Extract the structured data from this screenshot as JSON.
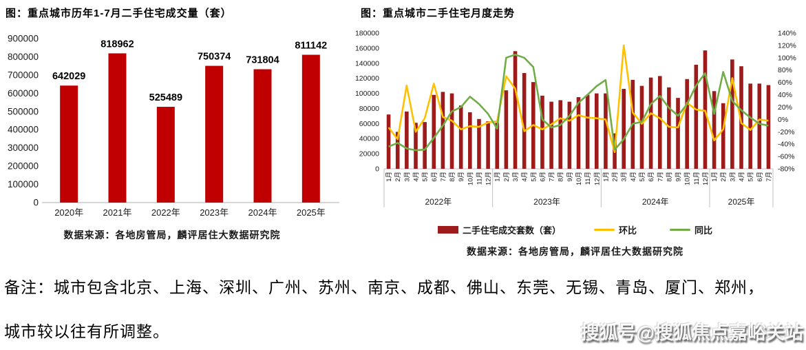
{
  "colors": {
    "left_bar": "#C00000",
    "right_bar": "#9E1B1B",
    "huanbi_line": "#FFC000",
    "tongbi_line": "#70AD47",
    "axis_text": "#1a1a1a",
    "axis_line": "#bfbfbf"
  },
  "left_chart": {
    "title": "图：重点城市历年1-7月二手住宅成交量（套）",
    "source": "数据来源：各地房管局，麟评居住大数据研究院"
  },
  "right_chart": {
    "title": "图：重点城市二手住宅月度走势",
    "source": "数据来源：各地房管局，麟评居住大数据研究院",
    "legend": [
      {
        "label": "二手住宅成交套数（套）",
        "type": "bar"
      },
      {
        "label": "环比",
        "type": "line"
      },
      {
        "label": "同比",
        "type": "line"
      }
    ]
  },
  "note": {
    "line1": "备注：城市包含北京、上海、深圳、广州、苏州、南京、成都、佛山、东莞、无锡、青岛、厦门、郑州，",
    "line2": "城市较以往有所调整。"
  },
  "watermark": "搜狐号@搜狐焦点嘉峪关站",
  "chart_data": [
    {
      "type": "bar",
      "title": "图：重点城市历年1-7月二手住宅成交量（套）",
      "categories": [
        "2020年",
        "2021年",
        "2022年",
        "2023年",
        "2024年",
        "2025年"
      ],
      "values": [
        642029,
        818962,
        525489,
        750374,
        731804,
        811142
      ],
      "data_labels": [
        "642029",
        "818962",
        "525489",
        "750374",
        "731804",
        "811142"
      ],
      "xlabel": "",
      "ylabel": "",
      "ylim": [
        0,
        900000
      ],
      "ytick_step": 100000,
      "grid": false,
      "legend_position": "none"
    },
    {
      "type": "bar+line combo",
      "title": "图：重点城市二手住宅月度走势",
      "months": [
        "1月",
        "2月",
        "3月",
        "4月",
        "5月",
        "6月",
        "7月",
        "8月",
        "9月",
        "10月",
        "11月",
        "12月",
        "1月",
        "2月",
        "3月",
        "4月",
        "5月",
        "6月",
        "7月",
        "8月",
        "9月",
        "10月",
        "11月",
        "12月",
        "1月",
        "2月",
        "3月",
        "4月",
        "5月",
        "6月",
        "7月",
        "8月",
        "9月",
        "10月",
        "11月",
        "12月",
        "1月",
        "2月",
        "3月",
        "4月",
        "5月",
        "6月",
        "7月"
      ],
      "year_groups": [
        {
          "label": "2022年",
          "n": 12
        },
        {
          "label": "2023年",
          "n": 12
        },
        {
          "label": "2024年",
          "n": 12
        },
        {
          "label": "2025年",
          "n": 7
        }
      ],
      "series": [
        {
          "name": "二手住宅成交套数（套）",
          "type": "bar",
          "axis": "left",
          "values": [
            72000,
            49000,
            76000,
            61000,
            62000,
            98000,
            102000,
            100000,
            84000,
            75000,
            66000,
            63000,
            61000,
            104000,
            156000,
            127000,
            115000,
            97000,
            89000,
            91000,
            89000,
            95000,
            98000,
            100000,
            100000,
            47000,
            106000,
            118000,
            110000,
            121000,
            123000,
            108000,
            94000,
            119000,
            138000,
            157000,
            103000,
            87000,
            145000,
            136000,
            113000,
            113000,
            111000
          ]
        },
        {
          "name": "环比",
          "type": "line",
          "axis": "right",
          "unit": "%",
          "values": [
            -13,
            -32,
            55,
            -20,
            2,
            58,
            4,
            -2,
            -16,
            -11,
            -12,
            -5,
            -3,
            70,
            50,
            -19,
            -9,
            -16,
            -8,
            2,
            -2,
            7,
            3,
            2,
            0,
            -53,
            120,
            11,
            -7,
            10,
            2,
            -12,
            -13,
            27,
            16,
            14,
            -34,
            -16,
            67,
            -6,
            -17,
            0,
            -2
          ]
        },
        {
          "name": "同比",
          "type": "line",
          "axis": "right",
          "unit": "%",
          "values": [
            -44,
            -38,
            -47,
            -50,
            -49,
            -30,
            -10,
            13,
            20,
            37,
            25,
            9,
            -15,
            100,
            105,
            100,
            85,
            0,
            -13,
            -9,
            6,
            27,
            40,
            54,
            64,
            -49,
            -32,
            -7,
            -4,
            25,
            38,
            19,
            6,
            25,
            55,
            75,
            9,
            77,
            30,
            15,
            3,
            -7,
            -10
          ]
        }
      ],
      "ylim_left": [
        0,
        180000
      ],
      "ytick_step_left": 20000,
      "ylim_right_percent": [
        -80,
        140
      ],
      "ytick_step_right_percent": 20,
      "grid": false,
      "legend_position": "bottom"
    }
  ]
}
